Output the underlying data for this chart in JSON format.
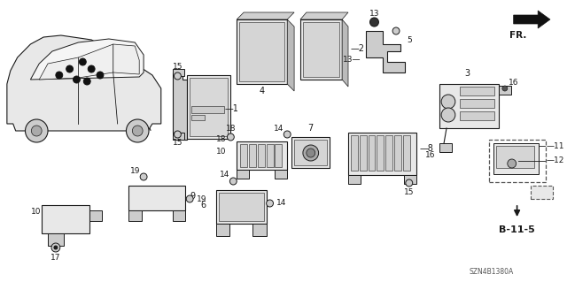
{
  "bg_color": "#ffffff",
  "diagram_code": "SZN4B1380A",
  "fg_color": "#1a1a1a",
  "gray_light": "#e8e8e8",
  "gray_mid": "#cccccc",
  "gray_dark": "#888888"
}
